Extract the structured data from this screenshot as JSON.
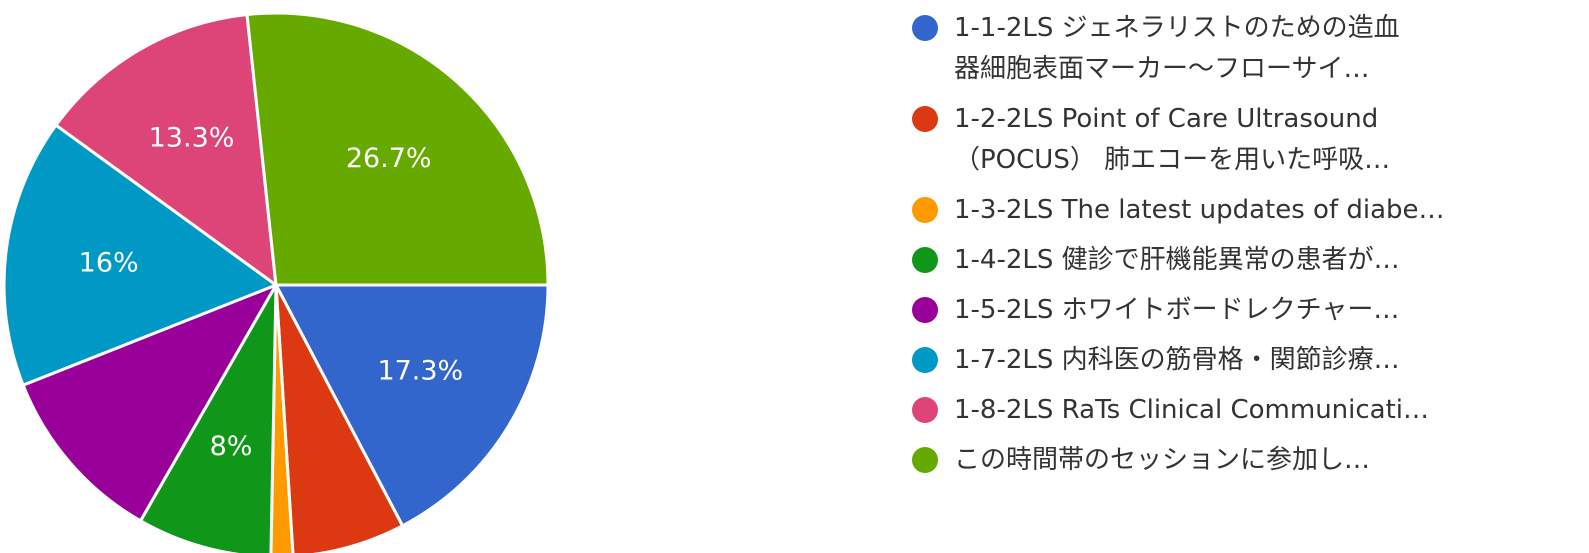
{
  "chart_data": {
    "type": "pie",
    "title": "",
    "series": [
      {
        "label": "1-1-2LS ジェネラリストのための造血\n器細胞表面マーカー〜フローサイ…",
        "value": 17.3,
        "color": "#3366cc",
        "display": "17.3%"
      },
      {
        "label": "1-2-2LS Point of Care Ultrasound\n（POCUS） 肺エコーを用いた呼吸…",
        "value": 6.7,
        "color": "#dc3912",
        "display": ""
      },
      {
        "label": "1-3-2LS The latest updates of diabe…",
        "value": 1.3,
        "color": "#ff9900",
        "display": ""
      },
      {
        "label": "1-4-2LS 健診で肝機能異常の患者が…",
        "value": 8.0,
        "color": "#109618",
        "display": "8%"
      },
      {
        "label": "1-5-2LS ホワイトボードレクチャー…",
        "value": 10.7,
        "color": "#990099",
        "display": ""
      },
      {
        "label": "1-7-2LS 内科医の筋骨格・関節診療…",
        "value": 16.0,
        "color": "#0099c6",
        "display": "16%"
      },
      {
        "label": "1-8-2LS RaTs Clinical Communicati…",
        "value": 13.3,
        "color": "#dd4477",
        "display": "13.3%"
      },
      {
        "label": "この時間帯のセッションに参加し…",
        "value": 26.7,
        "color": "#66aa00",
        "display": "26.7%"
      }
    ],
    "legend_position": "right",
    "start_angle": "3 o'clock, clockwise"
  }
}
